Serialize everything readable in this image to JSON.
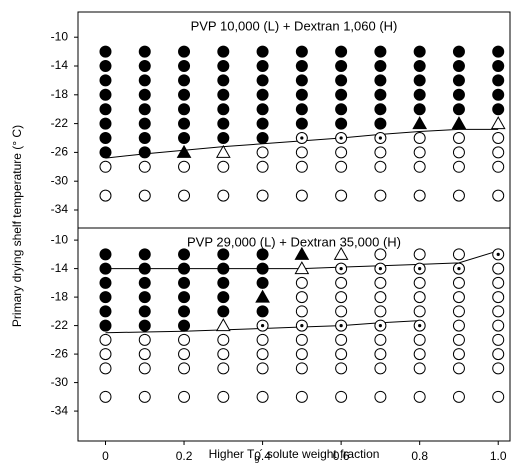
{
  "chart_data": [
    {
      "type": "scatter",
      "title": "PVP 10,000 (L) + Dextran 1,060 (H)",
      "ylabel": "Primary drying shelf temperature (° C)",
      "xlim": [
        -0.07,
        1.03
      ],
      "ylim": [
        -36.5,
        -6.5
      ],
      "yticks": [
        -10,
        -14,
        -18,
        -22,
        -26,
        -30,
        -34
      ],
      "series": [
        {
          "marker": "filled-circle",
          "x": [
            0,
            0,
            0,
            0,
            0,
            0,
            0,
            0,
            0.1,
            0.1,
            0.1,
            0.1,
            0.1,
            0.1,
            0.1,
            0.1,
            0.2,
            0.2,
            0.2,
            0.2,
            0.2,
            0.2,
            0.2,
            0.3,
            0.3,
            0.3,
            0.3,
            0.3,
            0.3,
            0.3,
            0.4,
            0.4,
            0.4,
            0.4,
            0.4,
            0.4,
            0.4,
            0.5,
            0.5,
            0.5,
            0.5,
            0.5,
            0.5,
            0.6,
            0.6,
            0.6,
            0.6,
            0.6,
            0.6,
            0.7,
            0.7,
            0.7,
            0.7,
            0.7,
            0.7,
            0.8,
            0.8,
            0.8,
            0.8,
            0.8,
            0.9,
            0.9,
            0.9,
            0.9,
            0.9,
            1,
            1,
            1,
            1,
            1
          ],
          "y": [
            -12,
            -14,
            -16,
            -18,
            -20,
            -22,
            -24,
            -26,
            -12,
            -14,
            -16,
            -18,
            -20,
            -22,
            -24,
            -26,
            -12,
            -14,
            -16,
            -18,
            -20,
            -22,
            -24,
            -12,
            -14,
            -16,
            -18,
            -20,
            -22,
            -24,
            -12,
            -14,
            -16,
            -18,
            -20,
            -22,
            -24,
            -12,
            -14,
            -16,
            -18,
            -20,
            -22,
            -12,
            -14,
            -16,
            -18,
            -20,
            -22,
            -12,
            -14,
            -16,
            -18,
            -20,
            -22,
            -12,
            -14,
            -16,
            -18,
            -20,
            -12,
            -14,
            -16,
            -18,
            -20,
            -12,
            -14,
            -16,
            -18,
            -20
          ]
        },
        {
          "marker": "filled-triangle",
          "x": [
            0.2,
            0.8,
            0.9
          ],
          "y": [
            -26,
            -22,
            -22
          ]
        },
        {
          "marker": "open-triangle",
          "x": [
            0.3,
            1
          ],
          "y": [
            -26,
            -22
          ]
        },
        {
          "marker": "dotted-circle",
          "x": [
            0.5,
            0.6,
            0.7
          ],
          "y": [
            -24,
            -24,
            -24
          ]
        },
        {
          "marker": "open-circle",
          "x": [
            0,
            0,
            0.1,
            0.1,
            0.2,
            0.2,
            0.3,
            0.3,
            0.4,
            0.4,
            0.4,
            0.5,
            0.5,
            0.5,
            0.6,
            0.6,
            0.6,
            0.7,
            0.7,
            0.7,
            0.8,
            0.8,
            0.8,
            0.8,
            0.9,
            0.9,
            0.9,
            0.9,
            1,
            1,
            1,
            1
          ],
          "y": [
            -28,
            -32,
            -28,
            -32,
            -28,
            -32,
            -28,
            -32,
            -26,
            -28,
            -32,
            -26,
            -28,
            -32,
            -26,
            -28,
            -32,
            -26,
            -28,
            -32,
            -24,
            -26,
            -28,
            -32,
            -24,
            -26,
            -28,
            -32,
            -24,
            -26,
            -28,
            -32
          ]
        }
      ],
      "lines": [
        {
          "x": [
            0,
            0.1,
            0.2,
            0.3,
            0.4,
            0.5,
            0.6,
            0.7,
            0.8,
            0.9,
            1
          ],
          "y": [
            -26.8,
            -26.2,
            -25.7,
            -25.2,
            -24.8,
            -24.4,
            -24,
            -23.5,
            -23.1,
            -22.8,
            -22.8
          ]
        }
      ]
    },
    {
      "type": "scatter",
      "title": "PVP 29,000 (L) + Dextran 35,000 (H)",
      "xlabel": [
        "Higher T",
        "g",
        "´ solute weight fraction"
      ],
      "xlim": [
        -0.07,
        1.03
      ],
      "ylim": [
        -38.2,
        -8.3
      ],
      "xticks": [
        0,
        0.2,
        0.4,
        0.6,
        0.8,
        {
          "value": 1,
          "label": "1.0"
        }
      ],
      "yticks": [
        -10,
        -14,
        -18,
        -22,
        -26,
        -30,
        -34
      ],
      "series": [
        {
          "marker": "filled-circle",
          "x": [
            0,
            0,
            0,
            0,
            0,
            0,
            0.1,
            0.1,
            0.1,
            0.1,
            0.1,
            0.1,
            0.2,
            0.2,
            0.2,
            0.2,
            0.2,
            0.2,
            0.3,
            0.3,
            0.3,
            0.3,
            0.3,
            0.4,
            0.4,
            0.4,
            0.4
          ],
          "y": [
            -12,
            -14,
            -16,
            -18,
            -20,
            -22,
            -12,
            -14,
            -16,
            -18,
            -20,
            -22,
            -12,
            -14,
            -16,
            -18,
            -20,
            -22,
            -12,
            -14,
            -16,
            -18,
            -20,
            -12,
            -14,
            -16,
            -20
          ]
        },
        {
          "marker": "filled-triangle",
          "x": [
            0.4,
            0.5
          ],
          "y": [
            -18,
            -12
          ]
        },
        {
          "marker": "open-triangle",
          "x": [
            0.3,
            0.5,
            0.6
          ],
          "y": [
            -22,
            -14,
            -12
          ]
        },
        {
          "marker": "dotted-circle",
          "x": [
            0.4,
            0.5,
            0.6,
            0.6,
            0.7,
            0.7,
            0.8,
            0.8,
            0.9,
            1
          ],
          "y": [
            -22,
            -22,
            -14,
            -22,
            -14,
            -22,
            -14,
            -22,
            -14,
            -12
          ]
        },
        {
          "marker": "open-circle",
          "x": [
            0,
            0,
            0,
            0,
            0.1,
            0.1,
            0.1,
            0.1,
            0.2,
            0.2,
            0.2,
            0.2,
            0.3,
            0.3,
            0.3,
            0.3,
            0.4,
            0.4,
            0.4,
            0.4,
            0.5,
            0.5,
            0.5,
            0.5,
            0.5,
            0.5,
            0.5,
            0.6,
            0.6,
            0.6,
            0.6,
            0.6,
            0.6,
            0.6,
            0.7,
            0.7,
            0.7,
            0.7,
            0.7,
            0.7,
            0.7,
            0.7,
            0.8,
            0.8,
            0.8,
            0.8,
            0.8,
            0.8,
            0.8,
            0.8,
            0.9,
            0.9,
            0.9,
            0.9,
            0.9,
            0.9,
            0.9,
            0.9,
            0.9,
            1,
            1,
            1,
            1,
            1,
            1,
            1,
            1,
            1
          ],
          "y": [
            -24,
            -26,
            -28,
            -32,
            -24,
            -26,
            -28,
            -32,
            -24,
            -26,
            -28,
            -32,
            -24,
            -26,
            -28,
            -32,
            -24,
            -26,
            -28,
            -32,
            -16,
            -18,
            -20,
            -24,
            -26,
            -28,
            -32,
            -16,
            -18,
            -20,
            -24,
            -26,
            -28,
            -32,
            -12,
            -16,
            -18,
            -20,
            -24,
            -26,
            -28,
            -32,
            -12,
            -16,
            -18,
            -20,
            -24,
            -26,
            -28,
            -32,
            -12,
            -16,
            -18,
            -20,
            -22,
            -24,
            -26,
            -28,
            -32,
            -14,
            -16,
            -18,
            -20,
            -22,
            -24,
            -26,
            -28,
            -32
          ]
        }
      ],
      "lines": [
        {
          "x": [
            0,
            0.1,
            0.2,
            0.3,
            0.4,
            0.5,
            0.6,
            0.7,
            0.8,
            0.9,
            1
          ],
          "y": [
            -14,
            -14,
            -14,
            -14,
            -14,
            -14,
            -13.8,
            -13.6,
            -13.4,
            -13.2,
            -11.5
          ]
        },
        {
          "x": [
            0,
            0.1,
            0.2,
            0.3,
            0.4,
            0.5,
            0.6,
            0.7,
            0.8
          ],
          "y": [
            -23,
            -22.9,
            -22.8,
            -22.6,
            -22.4,
            -22.2,
            -22,
            -21.6,
            -21.3
          ]
        }
      ]
    }
  ]
}
